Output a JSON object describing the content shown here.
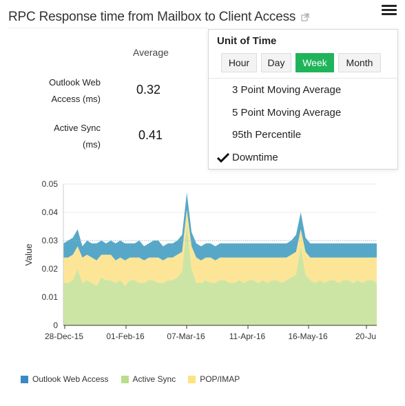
{
  "header": {
    "title": "RPC Response time from Mailbox to Client Access"
  },
  "stats": {
    "column_header": "Average",
    "rows": [
      {
        "label_line1": "Outlook Web",
        "label_line2": "Access (ms)",
        "value": "0.32"
      },
      {
        "label_line1": "Active Sync",
        "label_line2": "(ms)",
        "value": "0.41"
      }
    ]
  },
  "menu": {
    "title": "Unit of Time",
    "units": [
      "Hour",
      "Day",
      "Week",
      "Month"
    ],
    "active_unit": "Week",
    "options": [
      "3 Point Moving Average",
      "5 Point Moving Average",
      "95th Percentile",
      "Downtime"
    ],
    "checked_option": "Downtime",
    "accent": "#1fb45a"
  },
  "chart_data": {
    "type": "area",
    "stacked": true,
    "ylabel": "Value",
    "ylim": [
      0,
      0.05
    ],
    "yticks": [
      "0.05",
      "0.04",
      "0.03",
      "0.02",
      "0.01",
      "0"
    ],
    "x_tick_labels": [
      "28-Dec-15",
      "01-Feb-16",
      "07-Mar-16",
      "11-Apr-16",
      "16-May-16",
      "20-Ju"
    ],
    "grid": "horizontal",
    "reference_line": 0.03,
    "series": [
      {
        "name": "Active Sync",
        "color": "#cde5a4",
        "values": [
          0.015,
          0.015,
          0.016,
          0.02,
          0.015,
          0.016,
          0.015,
          0.014,
          0.017,
          0.016,
          0.016,
          0.015,
          0.016,
          0.014,
          0.016,
          0.016,
          0.015,
          0.015,
          0.016,
          0.016,
          0.015,
          0.015,
          0.016,
          0.016,
          0.017,
          0.019,
          0.036,
          0.02,
          0.015,
          0.015,
          0.016,
          0.015,
          0.015,
          0.016,
          0.016,
          0.015,
          0.015,
          0.016,
          0.015,
          0.016,
          0.016,
          0.015,
          0.016,
          0.015,
          0.016,
          0.016,
          0.015,
          0.016,
          0.017,
          0.018,
          0.028,
          0.018,
          0.016,
          0.015,
          0.016,
          0.015,
          0.016,
          0.016,
          0.015,
          0.016,
          0.016,
          0.015,
          0.016,
          0.015,
          0.016,
          0.016,
          0.015
        ]
      },
      {
        "name": "POP/IMAP",
        "color": "#fde597",
        "values": [
          0.009,
          0.009,
          0.009,
          0.008,
          0.009,
          0.009,
          0.009,
          0.009,
          0.008,
          0.009,
          0.009,
          0.008,
          0.008,
          0.009,
          0.008,
          0.008,
          0.009,
          0.008,
          0.008,
          0.008,
          0.009,
          0.008,
          0.008,
          0.008,
          0.008,
          0.007,
          0.005,
          0.008,
          0.009,
          0.008,
          0.008,
          0.009,
          0.008,
          0.008,
          0.008,
          0.009,
          0.009,
          0.008,
          0.009,
          0.008,
          0.008,
          0.009,
          0.008,
          0.009,
          0.008,
          0.008,
          0.009,
          0.008,
          0.008,
          0.008,
          0.006,
          0.008,
          0.008,
          0.009,
          0.008,
          0.009,
          0.008,
          0.008,
          0.009,
          0.008,
          0.008,
          0.009,
          0.008,
          0.009,
          0.008,
          0.008,
          0.009
        ]
      },
      {
        "name": "Outlook Web Access",
        "color": "#57a8c8",
        "values": [
          0.005,
          0.006,
          0.006,
          0.006,
          0.004,
          0.005,
          0.005,
          0.006,
          0.005,
          0.004,
          0.005,
          0.006,
          0.006,
          0.006,
          0.005,
          0.005,
          0.006,
          0.005,
          0.005,
          0.006,
          0.006,
          0.005,
          0.005,
          0.005,
          0.005,
          0.006,
          0.006,
          0.005,
          0.005,
          0.005,
          0.005,
          0.005,
          0.005,
          0.005,
          0.005,
          0.005,
          0.005,
          0.005,
          0.005,
          0.005,
          0.005,
          0.005,
          0.005,
          0.005,
          0.005,
          0.005,
          0.005,
          0.005,
          0.005,
          0.006,
          0.006,
          0.005,
          0.005,
          0.005,
          0.005,
          0.005,
          0.005,
          0.005,
          0.005,
          0.005,
          0.005,
          0.005,
          0.005,
          0.005,
          0.005,
          0.005,
          0.005
        ]
      }
    ],
    "legend_order": [
      "Outlook Web Access",
      "Active Sync",
      "POP/IMAP"
    ],
    "legend_position": "bottom-left"
  }
}
